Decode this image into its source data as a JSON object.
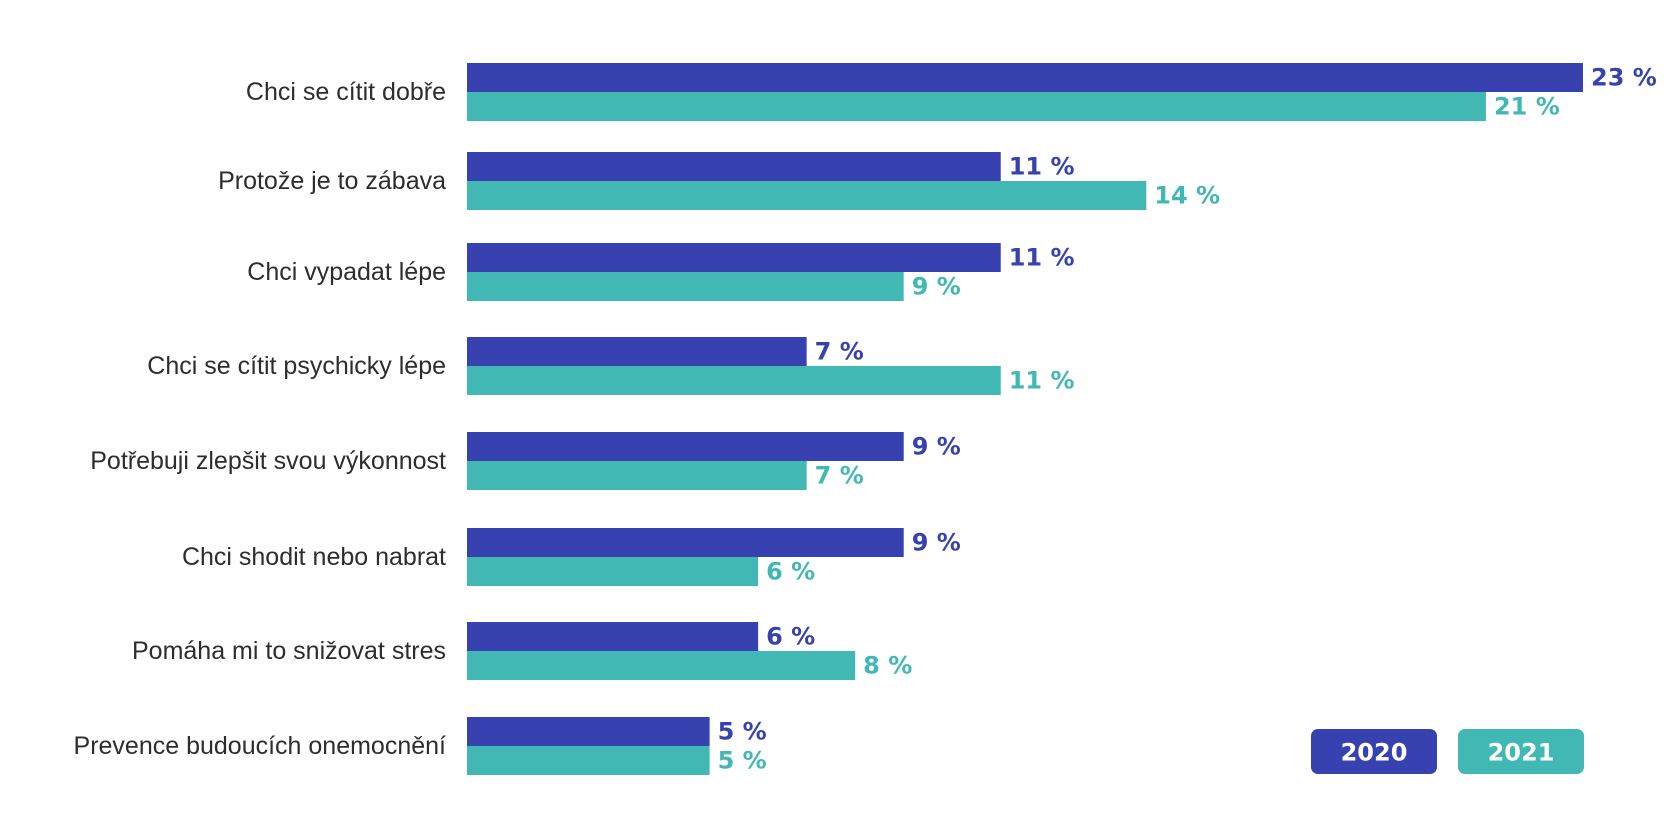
{
  "chart_data": {
    "type": "bar",
    "orientation": "horizontal",
    "categories": [
      "Chci se cítit dobře",
      "Protože je to zábava",
      "Chci vypadat lépe",
      "Chci se cítit psychicky lépe",
      "Potřebuji zlepšit svou výkonnost",
      "Chci shodit nebo nabrat",
      "Pomáha mi to snižovat stres",
      "Prevence budoucích onemocnění"
    ],
    "series": [
      {
        "name": "2020",
        "color": "#3742b0",
        "values": [
          23,
          11,
          11,
          7,
          9,
          9,
          6,
          5
        ],
        "labels": [
          "23 %",
          "11 %",
          "11 %",
          "7 %",
          "9 %",
          "9 %",
          "6 %",
          "5 %"
        ]
      },
      {
        "name": "2021",
        "color": "#41b8b4",
        "values": [
          21,
          14,
          9,
          11,
          7,
          6,
          8,
          5
        ],
        "labels": [
          "21 %",
          "14 %",
          "9 %",
          "11 %",
          "7 %",
          "6 %",
          "8 %",
          "5 %"
        ]
      }
    ],
    "xlim": [
      0,
      23
    ],
    "grid": false,
    "legend_position": "bottom-right"
  }
}
